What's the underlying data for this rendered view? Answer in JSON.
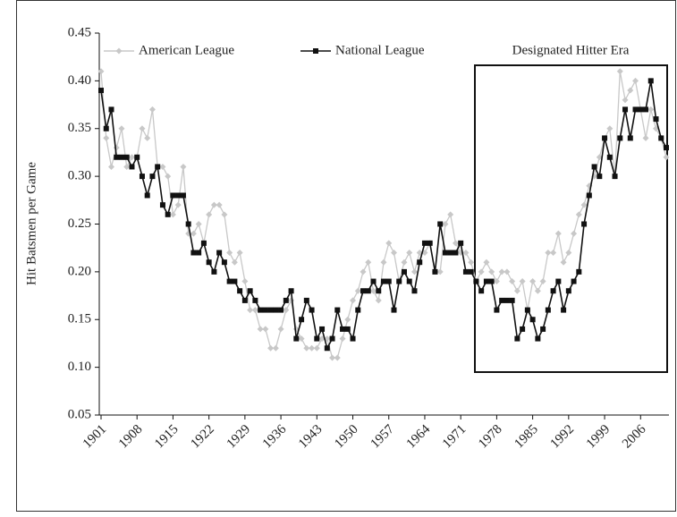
{
  "chart_data": {
    "type": "line",
    "y_label": "Hit Batsmen per Game",
    "annotation": "Designated Hitter Era",
    "x": [
      1901,
      1902,
      1903,
      1904,
      1905,
      1906,
      1907,
      1908,
      1909,
      1910,
      1911,
      1912,
      1913,
      1914,
      1915,
      1916,
      1917,
      1918,
      1919,
      1920,
      1921,
      1922,
      1923,
      1924,
      1925,
      1926,
      1927,
      1928,
      1929,
      1930,
      1931,
      1932,
      1933,
      1934,
      1935,
      1936,
      1937,
      1938,
      1939,
      1940,
      1941,
      1942,
      1943,
      1944,
      1945,
      1946,
      1947,
      1948,
      1949,
      1950,
      1951,
      1952,
      1953,
      1954,
      1955,
      1956,
      1957,
      1958,
      1959,
      1960,
      1961,
      1962,
      1963,
      1964,
      1965,
      1966,
      1967,
      1968,
      1969,
      1970,
      1971,
      1972,
      1973,
      1974,
      1975,
      1976,
      1977,
      1978,
      1979,
      1980,
      1981,
      1982,
      1983,
      1984,
      1985,
      1986,
      1987,
      1988,
      1989,
      1990,
      1991,
      1992,
      1993,
      1994,
      1995,
      1996,
      1997,
      1998,
      1999,
      2000,
      2001,
      2002,
      2003,
      2004,
      2005,
      2006,
      2007,
      2008,
      2009,
      2010,
      2011
    ],
    "series": [
      {
        "name": "American League",
        "color": "#c8c8c8",
        "marker": "diamond",
        "values": [
          0.41,
          0.34,
          0.31,
          0.33,
          0.35,
          0.31,
          0.32,
          0.32,
          0.35,
          0.34,
          0.37,
          0.31,
          0.31,
          0.3,
          0.26,
          0.27,
          0.31,
          0.24,
          0.24,
          0.25,
          0.23,
          0.26,
          0.27,
          0.27,
          0.26,
          0.22,
          0.21,
          0.22,
          0.19,
          0.16,
          0.16,
          0.14,
          0.14,
          0.12,
          0.12,
          0.14,
          0.16,
          0.17,
          0.14,
          0.13,
          0.12,
          0.12,
          0.12,
          0.13,
          0.13,
          0.11,
          0.11,
          0.13,
          0.15,
          0.17,
          0.18,
          0.2,
          0.21,
          0.18,
          0.17,
          0.21,
          0.23,
          0.22,
          0.19,
          0.21,
          0.22,
          0.2,
          0.22,
          0.22,
          0.23,
          0.2,
          0.2,
          0.25,
          0.26,
          0.23,
          0.22,
          0.22,
          0.21,
          0.19,
          0.2,
          0.21,
          0.2,
          0.19,
          0.2,
          0.2,
          0.19,
          0.18,
          0.19,
          0.16,
          0.19,
          0.18,
          0.19,
          0.22,
          0.22,
          0.24,
          0.21,
          0.22,
          0.24,
          0.26,
          0.27,
          0.29,
          0.3,
          0.32,
          0.34,
          0.35,
          0.3,
          0.41,
          0.38,
          0.39,
          0.4,
          0.37,
          0.34,
          0.37,
          0.35,
          0.34,
          0.32
        ]
      },
      {
        "name": "National League",
        "color": "#111111",
        "marker": "square",
        "values": [
          0.39,
          0.35,
          0.37,
          0.32,
          0.32,
          0.32,
          0.31,
          0.32,
          0.3,
          0.28,
          0.3,
          0.31,
          0.27,
          0.26,
          0.28,
          0.28,
          0.28,
          0.25,
          0.22,
          0.22,
          0.23,
          0.21,
          0.2,
          0.22,
          0.21,
          0.19,
          0.19,
          0.18,
          0.17,
          0.18,
          0.17,
          0.16,
          0.16,
          0.16,
          0.16,
          0.16,
          0.17,
          0.18,
          0.13,
          0.15,
          0.17,
          0.16,
          0.13,
          0.14,
          0.12,
          0.13,
          0.16,
          0.14,
          0.14,
          0.13,
          0.16,
          0.18,
          0.18,
          0.19,
          0.18,
          0.19,
          0.19,
          0.16,
          0.19,
          0.2,
          0.19,
          0.18,
          0.21,
          0.23,
          0.23,
          0.2,
          0.25,
          0.22,
          0.22,
          0.22,
          0.23,
          0.2,
          0.2,
          0.19,
          0.18,
          0.19,
          0.19,
          0.16,
          0.17,
          0.17,
          0.17,
          0.13,
          0.14,
          0.16,
          0.15,
          0.13,
          0.14,
          0.16,
          0.18,
          0.19,
          0.16,
          0.18,
          0.19,
          0.2,
          0.25,
          0.28,
          0.31,
          0.3,
          0.34,
          0.32,
          0.3,
          0.34,
          0.37,
          0.34,
          0.37,
          0.37,
          0.37,
          0.4,
          0.36,
          0.34,
          0.33
        ]
      }
    ],
    "xlim": [
      1901,
      2011
    ],
    "xticks": [
      1901,
      1908,
      1915,
      1922,
      1929,
      1936,
      1943,
      1950,
      1957,
      1964,
      1971,
      1978,
      1985,
      1992,
      1999,
      2006
    ],
    "ylim": [
      0.05,
      0.45
    ],
    "yticks": [
      0.45,
      {
        "value": 0.4,
        "label": "0.40"
      },
      0.35,
      {
        "value": 0.3,
        "label": "0.30"
      },
      0.25,
      {
        "value": 0.2,
        "label": "0.20"
      },
      0.15,
      {
        "value": 0.1,
        "label": "0.10"
      },
      0.05
    ],
    "legend": "top"
  }
}
